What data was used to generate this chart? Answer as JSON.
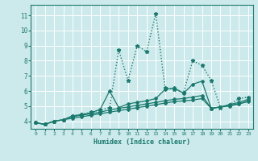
{
  "xlabel": "Humidex (Indice chaleur)",
  "ylabel": "",
  "xlim": [
    -0.5,
    23.5
  ],
  "ylim": [
    3.5,
    11.7
  ],
  "yticks": [
    4,
    5,
    6,
    7,
    8,
    9,
    10,
    11
  ],
  "xticks": [
    0,
    1,
    2,
    3,
    4,
    5,
    6,
    7,
    8,
    9,
    10,
    11,
    12,
    13,
    14,
    15,
    16,
    17,
    18,
    19,
    20,
    21,
    22,
    23
  ],
  "bg_color": "#cce9eb",
  "grid_color": "#ffffff",
  "line_color": "#1a7a6e",
  "lines": [
    {
      "x": [
        0,
        1,
        2,
        3,
        4,
        5,
        6,
        7,
        8,
        9,
        10,
        11,
        12,
        13,
        14,
        15,
        16,
        17,
        18,
        19,
        20,
        21,
        22,
        23
      ],
      "y": [
        3.9,
        3.8,
        4.0,
        4.1,
        4.35,
        4.45,
        4.6,
        4.75,
        4.9,
        8.7,
        6.7,
        9.0,
        8.6,
        11.1,
        6.2,
        6.1,
        5.9,
        8.0,
        7.7,
        6.7,
        4.9,
        5.1,
        5.5,
        5.6
      ],
      "marker": "*",
      "markersize": 3.5,
      "linewidth": 1.0,
      "linestyle": ":"
    },
    {
      "x": [
        0,
        1,
        2,
        3,
        4,
        5,
        6,
        7,
        8,
        9,
        10,
        11,
        12,
        13,
        14,
        15,
        16,
        17,
        18,
        19,
        20,
        21,
        22,
        23
      ],
      "y": [
        3.9,
        3.8,
        4.0,
        4.1,
        4.35,
        4.45,
        4.55,
        4.8,
        6.0,
        4.9,
        5.15,
        5.25,
        5.35,
        5.5,
        6.1,
        6.2,
        5.85,
        6.45,
        6.65,
        4.85,
        4.95,
        5.1,
        5.25,
        5.45
      ],
      "marker": "D",
      "markersize": 2.0,
      "linewidth": 0.9,
      "linestyle": "-"
    },
    {
      "x": [
        0,
        1,
        2,
        3,
        4,
        5,
        6,
        7,
        8,
        9,
        10,
        11,
        12,
        13,
        14,
        15,
        16,
        17,
        18,
        19,
        20,
        21,
        22,
        23
      ],
      "y": [
        3.9,
        3.8,
        4.0,
        4.1,
        4.3,
        4.4,
        4.5,
        4.6,
        4.75,
        4.85,
        4.95,
        5.05,
        5.15,
        5.25,
        5.35,
        5.45,
        5.5,
        5.6,
        5.7,
        4.85,
        4.95,
        5.05,
        5.15,
        5.35
      ],
      "marker": "D",
      "markersize": 2.0,
      "linewidth": 0.9,
      "linestyle": "-"
    },
    {
      "x": [
        0,
        1,
        2,
        3,
        4,
        5,
        6,
        7,
        8,
        9,
        10,
        11,
        12,
        13,
        14,
        15,
        16,
        17,
        18,
        19,
        20,
        21,
        22,
        23
      ],
      "y": [
        3.9,
        3.8,
        4.0,
        4.1,
        4.2,
        4.3,
        4.4,
        4.5,
        4.6,
        4.7,
        4.8,
        4.9,
        5.0,
        5.1,
        5.2,
        5.3,
        5.35,
        5.4,
        5.5,
        4.85,
        4.95,
        5.0,
        5.15,
        5.3
      ],
      "marker": "D",
      "markersize": 2.0,
      "linewidth": 0.9,
      "linestyle": "-"
    }
  ]
}
